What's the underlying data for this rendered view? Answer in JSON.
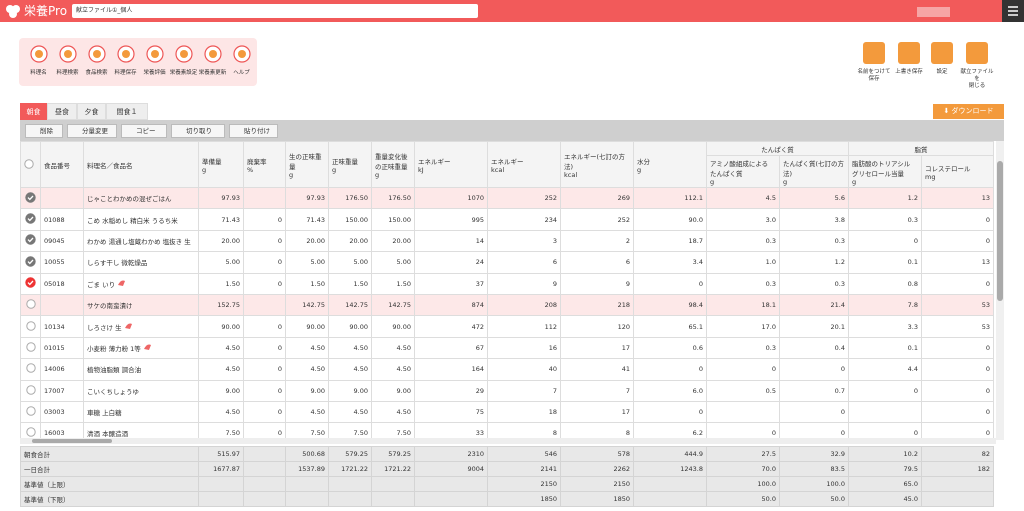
{
  "header": {
    "logo": "栄養Pro",
    "file": "献立ファイル①_個人"
  },
  "toolbar": [
    "料理名",
    "料理検索",
    "食品検索",
    "料理保存",
    "栄養評価",
    "栄養素設定",
    "栄養素更新",
    "ヘルプ"
  ],
  "actions": [
    "名前をつけて\n保存",
    "上書き保存",
    "設定",
    "献立ファイルを\n閉じる"
  ],
  "tabs": [
    "朝食",
    "昼食",
    "夕食",
    "間食１"
  ],
  "download": "ダウンロード",
  "buttons": [
    "削除",
    "分量変更",
    "コピー",
    "切り取り",
    "貼り付け"
  ],
  "table": {
    "groups": [
      "たんぱく質",
      "脂質"
    ],
    "columns": [
      "食品番号",
      "料理名／食品名",
      "準備量\ng",
      "廃棄率\n%",
      "生の正味重\n量\ng",
      "正味重量\ng",
      "重量変化後\nの正味重量\ng",
      "エネルギー\nkJ",
      "エネルギー\nkcal",
      "エネルギー(七訂の方\n法)\nkcal",
      "水分\ng",
      "アミノ酸組成による\nたんぱく質\ng",
      "たんぱく質(七訂の方\n法)\ng",
      "脂肪酸のトリアシル\nグリセロール当量\ng",
      "コレステロール\nmg"
    ],
    "rows": [
      {
        "state": "checked",
        "dish": true,
        "icon": false,
        "cells": [
          "",
          "じゃことわかめの混ぜごはん",
          "97.93",
          "",
          "97.93",
          "176.50",
          "176.50",
          "1070",
          "252",
          "269",
          "112.1",
          "4.5",
          "5.6",
          "1.2",
          "13"
        ]
      },
      {
        "state": "checked",
        "dish": false,
        "icon": false,
        "cells": [
          "01088",
          "こめ 水稲めし 精白米 うるち米",
          "71.43",
          "0",
          "71.43",
          "150.00",
          "150.00",
          "995",
          "234",
          "252",
          "90.0",
          "3.0",
          "3.8",
          "0.3",
          "0"
        ]
      },
      {
        "state": "checked",
        "dish": false,
        "icon": false,
        "cells": [
          "09045",
          "わかめ 湯通し塩蔵わかめ 塩抜き 生",
          "20.00",
          "0",
          "20.00",
          "20.00",
          "20.00",
          "14",
          "3",
          "2",
          "18.7",
          "0.3",
          "0.3",
          "0",
          "0"
        ]
      },
      {
        "state": "checked",
        "dish": false,
        "icon": false,
        "cells": [
          "10055",
          "しらす干し 微乾燥品",
          "5.00",
          "0",
          "5.00",
          "5.00",
          "5.00",
          "24",
          "6",
          "6",
          "3.4",
          "1.0",
          "1.2",
          "0.1",
          "13"
        ]
      },
      {
        "state": "red",
        "dish": false,
        "icon": true,
        "cells": [
          "05018",
          "ごま いり",
          "1.50",
          "0",
          "1.50",
          "1.50",
          "1.50",
          "37",
          "9",
          "9",
          "0",
          "0.3",
          "0.3",
          "0.8",
          "0"
        ]
      },
      {
        "state": "none",
        "dish": true,
        "icon": false,
        "cells": [
          "",
          "サケの南蛮漬け",
          "152.75",
          "",
          "142.75",
          "142.75",
          "142.75",
          "874",
          "208",
          "218",
          "98.4",
          "18.1",
          "21.4",
          "7.8",
          "53"
        ]
      },
      {
        "state": "none",
        "dish": false,
        "icon": true,
        "cells": [
          "10134",
          "しろさけ 生",
          "90.00",
          "0",
          "90.00",
          "90.00",
          "90.00",
          "472",
          "112",
          "120",
          "65.1",
          "17.0",
          "20.1",
          "3.3",
          "53"
        ]
      },
      {
        "state": "none",
        "dish": false,
        "icon": true,
        "cells": [
          "01015",
          "小麦粉 薄力粉 1等",
          "4.50",
          "0",
          "4.50",
          "4.50",
          "4.50",
          "67",
          "16",
          "17",
          "0.6",
          "0.3",
          "0.4",
          "0.1",
          "0"
        ]
      },
      {
        "state": "none",
        "dish": false,
        "icon": false,
        "cells": [
          "14006",
          "植物油脂類 調合油",
          "4.50",
          "0",
          "4.50",
          "4.50",
          "4.50",
          "164",
          "40",
          "41",
          "0",
          "0",
          "0",
          "4.4",
          "0"
        ]
      },
      {
        "state": "none",
        "dish": false,
        "icon": false,
        "cells": [
          "17007",
          "こいくちしょうゆ",
          "9.00",
          "0",
          "9.00",
          "9.00",
          "9.00",
          "29",
          "7",
          "7",
          "6.0",
          "0.5",
          "0.7",
          "0",
          "0"
        ]
      },
      {
        "state": "none",
        "dish": false,
        "icon": false,
        "cells": [
          "03003",
          "車糖 上白糖",
          "4.50",
          "0",
          "4.50",
          "4.50",
          "4.50",
          "75",
          "18",
          "17",
          "0",
          "",
          "0",
          "",
          "0"
        ]
      },
      {
        "state": "none",
        "dish": false,
        "icon": false,
        "cells": [
          "16003",
          "清酒 本醸造酒",
          "7.50",
          "0",
          "7.50",
          "7.50",
          "7.50",
          "33",
          "8",
          "8",
          "6.2",
          "0",
          "0",
          "0",
          "0"
        ]
      }
    ],
    "totals": [
      {
        "label": "朝食合計",
        "cells": [
          "515.97",
          "",
          "500.68",
          "579.25",
          "579.25",
          "2310",
          "546",
          "578",
          "444.9",
          "27.5",
          "32.9",
          "10.2",
          "82"
        ]
      },
      {
        "label": "一日合計",
        "cells": [
          "1677.87",
          "",
          "1537.89",
          "1721.22",
          "1721.22",
          "9004",
          "2141",
          "2262",
          "1243.8",
          "70.0",
          "83.5",
          "79.5",
          "182"
        ]
      },
      {
        "label": "基準値（上限）",
        "cells": [
          "",
          "",
          "",
          "",
          "",
          "",
          "2150",
          "2150",
          "",
          "100.0",
          "100.0",
          "65.0",
          ""
        ]
      },
      {
        "label": "基準値（下限）",
        "cells": [
          "",
          "",
          "",
          "",
          "",
          "",
          "1850",
          "1850",
          "",
          "50.0",
          "50.0",
          "45.0",
          ""
        ]
      }
    ]
  }
}
